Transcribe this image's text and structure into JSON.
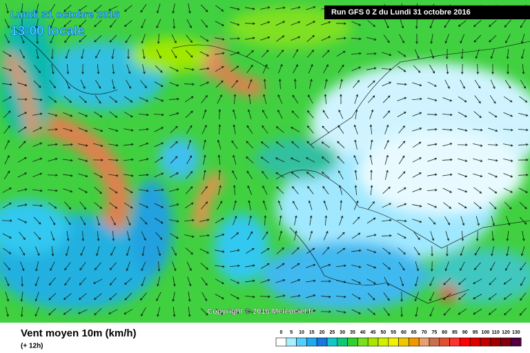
{
  "map": {
    "date": "Lundi 31 octobre 2016",
    "time": "13:00 locale",
    "run": "Run GFS 0 Z du Lundi 31 octobre 2016",
    "copyright": "Copyright © 2016 Meteociel.fr",
    "legend_title": "Vent moyen 10m (km/h)",
    "lead": "(+ 12h)",
    "scale": [
      {
        "value": 0,
        "color": "#ffffff"
      },
      {
        "value": 5,
        "color": "#a8f0ff"
      },
      {
        "value": 10,
        "color": "#50d0ff"
      },
      {
        "value": 15,
        "color": "#20a8f0"
      },
      {
        "value": 20,
        "color": "#1878e0"
      },
      {
        "value": 25,
        "color": "#10c8c8"
      },
      {
        "value": 30,
        "color": "#10c878"
      },
      {
        "value": 35,
        "color": "#30d030"
      },
      {
        "value": 40,
        "color": "#78e020"
      },
      {
        "value": 45,
        "color": "#a8e800"
      },
      {
        "value": 50,
        "color": "#d0f000"
      },
      {
        "value": 55,
        "color": "#f0f000"
      },
      {
        "value": 60,
        "color": "#f0c800"
      },
      {
        "value": 65,
        "color": "#f09800"
      },
      {
        "value": 70,
        "color": "#e8a070"
      },
      {
        "value": 75,
        "color": "#c87050"
      },
      {
        "value": 80,
        "color": "#e05030"
      },
      {
        "value": 85,
        "color": "#ff3030"
      },
      {
        "value": 90,
        "color": "#ff0000"
      },
      {
        "value": 95,
        "color": "#e00000"
      },
      {
        "value": 100,
        "color": "#c00000"
      },
      {
        "value": 110,
        "color": "#a00000"
      },
      {
        "value": 120,
        "color": "#800010"
      },
      {
        "value": 130,
        "color": "#500040"
      }
    ]
  }
}
